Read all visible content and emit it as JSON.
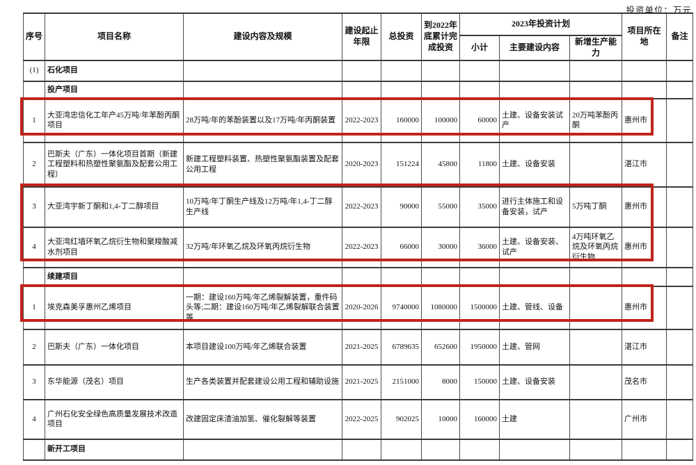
{
  "unit_label": "投资单位：万元",
  "accent_color": "#c0241a",
  "table": {
    "header": {
      "no": "序号",
      "name": "项目名称",
      "content": "建设内容及规模",
      "years": "建设起止年限",
      "total": "总投资",
      "done2022": "到2022年底累计完成投资",
      "plan2023": "2023年投资计划",
      "subtotal": "小计",
      "main": "主要建设内容",
      "capacity": "新增生产能力",
      "location": "项目所在地",
      "remark": "备注"
    },
    "rows": [
      {
        "type": "section",
        "no": "(1)",
        "name": "石化项目",
        "content": "",
        "years": "",
        "total": "",
        "done2022": "",
        "subtotal": "",
        "main": "",
        "capacity": "",
        "location": "",
        "remark": ""
      },
      {
        "type": "section",
        "no": "",
        "name": "投产项目",
        "content": "",
        "years": "",
        "total": "",
        "done2022": "",
        "subtotal": "",
        "main": "",
        "capacity": "",
        "location": "",
        "remark": ""
      },
      {
        "type": "data",
        "no": "1",
        "name": "大亚湾忠信化工年产45万吨/年苯酚丙酮项目",
        "content": "28万吨/年的苯酚装置以及17万吨/年丙酮装置",
        "years": "2022-2023",
        "total": "160000",
        "done2022": "100000",
        "subtotal": "60000",
        "main": "土建、设备安装试产",
        "capacity": "20万吨苯酚丙酮",
        "location": "惠州市",
        "remark": ""
      },
      {
        "type": "data",
        "no": "2",
        "name": "巴斯夫（广东）一体化项目首期（新建工程塑料和热塑性聚氨酯及配套公用工程）",
        "content": "新建工程塑料装置、热塑性聚氨酯装置及配套公用工程",
        "years": "2020-2023",
        "total": "151224",
        "done2022": "45800",
        "subtotal": "11800",
        "main": "土建、设备安装",
        "capacity": "",
        "location": "湛江市",
        "remark": ""
      },
      {
        "type": "data",
        "no": "3",
        "name": "大亚湾宇新丁酮和1,4-丁二醇项目",
        "content": "10万吨/年丁酮生产线及12万吨/年1,4-丁二醇生产线",
        "years": "2022-2023",
        "total": "90000",
        "done2022": "55000",
        "subtotal": "35000",
        "main": "进行主体施工和设备安装，试产",
        "capacity": "5万吨丁酮",
        "location": "惠州市",
        "remark": ""
      },
      {
        "type": "data",
        "no": "4",
        "name": "大亚湾红墙环氧乙烷衍生物和聚羧酸减水剂项目",
        "content": "32万吨/年环氧乙烷及环氧丙烷衍生物",
        "years": "2022-2023",
        "total": "66000",
        "done2022": "30000",
        "subtotal": "36000",
        "main": "土建、设备安装、试产",
        "capacity": "4万吨环氧乙烷及环氧丙烷衍生物",
        "location": "惠州市",
        "remark": ""
      },
      {
        "type": "section",
        "no": "",
        "name": "续建项目",
        "content": "",
        "years": "",
        "total": "",
        "done2022": "",
        "subtotal": "",
        "main": "",
        "capacity": "",
        "location": "",
        "remark": ""
      },
      {
        "type": "data",
        "no": "1",
        "name": "埃克森美孚惠州乙烯项目",
        "content": "一期：建设160万吨/年乙烯裂解装置，重件码头等;二期：建设160万吨/年乙烯裂解联合装置等",
        "years": "2020-2026",
        "total": "9740000",
        "done2022": "1080000",
        "subtotal": "1500000",
        "main": "土建、管线、设备",
        "capacity": "",
        "location": "惠州市",
        "remark": ""
      },
      {
        "type": "data",
        "no": "2",
        "name": "巴斯夫（广东）一体化项目",
        "content": "本项目建设100万吨/年乙烯联合装置",
        "years": "2021-2025",
        "total": "6789635",
        "done2022": "652600",
        "subtotal": "1950000",
        "main": "土建、管网",
        "capacity": "",
        "location": "湛江市",
        "remark": ""
      },
      {
        "type": "data",
        "no": "3",
        "name": "东华能源（茂名）项目",
        "content": "生产各类装置并配套建设公用工程和辅助设施",
        "years": "2021-2025",
        "total": "2151000",
        "done2022": "8000",
        "subtotal": "150000",
        "main": "土建、设备安装",
        "capacity": "",
        "location": "茂名市",
        "remark": ""
      },
      {
        "type": "data",
        "no": "4",
        "name": "广州石化安全绿色高质量发展技术改造项目",
        "content": "改建固定床渣油加氢、催化裂解等装置",
        "years": "2022-2025",
        "total": "902025",
        "done2022": "10000",
        "subtotal": "160000",
        "main": "土建",
        "capacity": "",
        "location": "广州市",
        "remark": ""
      },
      {
        "type": "section",
        "no": "",
        "name": "新开工项目",
        "content": "",
        "years": "",
        "total": "",
        "done2022": "",
        "subtotal": "",
        "main": "",
        "capacity": "",
        "location": "",
        "remark": ""
      }
    ]
  }
}
